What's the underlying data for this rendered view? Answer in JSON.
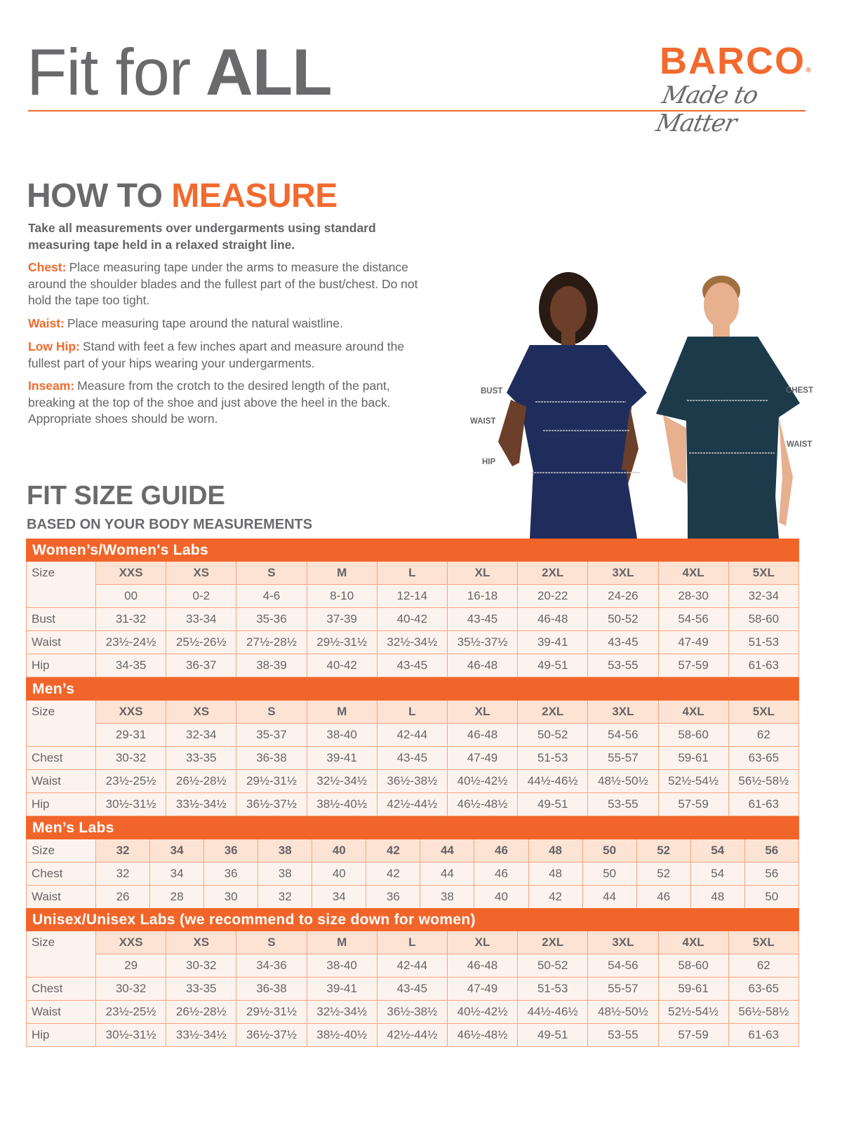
{
  "header": {
    "title_regular": "Fit for",
    "title_bold": "ALL"
  },
  "logo": {
    "brand": "BARCO",
    "registered": "®",
    "tagline": "Made to Matter"
  },
  "how_to": {
    "title_part1": "HOW TO",
    "title_part2": "MEASURE",
    "intro": "Take all measurements over undergarments using standard measuring tape held in a relaxed straight line.",
    "items": [
      {
        "label": "Chest:",
        "text": "Place measuring tape under the arms to measure the distance around the shoulder blades and the fullest part of the bust/chest. Do not hold the tape too tight."
      },
      {
        "label": "Waist:",
        "text": "Place measuring tape around the natural waistline."
      },
      {
        "label": "Low Hip:",
        "text": "Stand with feet a few inches apart and measure around the fullest part of your hips wearing your undergarments."
      },
      {
        "label": "Inseam:",
        "text": "Measure from the crotch to the desired length of the pant, breaking at the top of the shoe and just above the heel in the back. Appropriate shoes should be worn."
      }
    ]
  },
  "figures": {
    "women_labels": [
      "BUST",
      "WAIST",
      "HIP"
    ],
    "men_labels": [
      "CHEST",
      "WAIST"
    ],
    "women_scrub_color": "#1f2d5c",
    "men_scrub_color": "#1d3a4a"
  },
  "guide": {
    "title": "FIT SIZE GUIDE",
    "subtitle": "BASED ON YOUR BODY MEASUREMENTS"
  },
  "colors": {
    "accent": "#f26a2e",
    "size_row": "#fde3d3",
    "cell": "#fdf3ee",
    "text": "#646467"
  },
  "tables": [
    {
      "title": "Women’s/Women's Labs",
      "size_label": "Size",
      "sizes": [
        "XXS",
        "XS",
        "S",
        "M",
        "L",
        "XL",
        "2XL",
        "3XL",
        "4XL",
        "5XL"
      ],
      "size_numbers": [
        "00",
        "0-2",
        "4-6",
        "8-10",
        "12-14",
        "16-18",
        "20-22",
        "24-26",
        "28-30",
        "32-34"
      ],
      "rows": [
        {
          "label": "Bust",
          "values": [
            "31-32",
            "33-34",
            "35-36",
            "37-39",
            "40-42",
            "43-45",
            "46-48",
            "50-52",
            "54-56",
            "58-60"
          ]
        },
        {
          "label": "Waist",
          "values": [
            "23½-24½",
            "25½-26½",
            "27½-28½",
            "29½-31½",
            "32½-34½",
            "35½-37½",
            "39-41",
            "43-45",
            "47-49",
            "51-53"
          ]
        },
        {
          "label": "Hip",
          "values": [
            "34-35",
            "36-37",
            "38-39",
            "40-42",
            "43-45",
            "46-48",
            "49-51",
            "53-55",
            "57-59",
            "61-63"
          ]
        }
      ]
    },
    {
      "title": "Men’s",
      "size_label": "Size",
      "sizes": [
        "XXS",
        "XS",
        "S",
        "M",
        "L",
        "XL",
        "2XL",
        "3XL",
        "4XL",
        "5XL"
      ],
      "size_numbers": [
        "29-31",
        "32-34",
        "35-37",
        "38-40",
        "42-44",
        "46-48",
        "50-52",
        "54-56",
        "58-60",
        "62"
      ],
      "rows": [
        {
          "label": "Chest",
          "values": [
            "30-32",
            "33-35",
            "36-38",
            "39-41",
            "43-45",
            "47-49",
            "51-53",
            "55-57",
            "59-61",
            "63-65"
          ]
        },
        {
          "label": "Waist",
          "values": [
            "23½-25½",
            "26½-28½",
            "29½-31½",
            "32½-34½",
            "36½-38½",
            "40½-42½",
            "44½-46½",
            "48½-50½",
            "52½-54½",
            "56½-58½"
          ]
        },
        {
          "label": "Hip",
          "values": [
            "30½-31½",
            "33½-34½",
            "36½-37½",
            "38½-40½",
            "42½-44½",
            "46½-48½",
            "49-51",
            "53-55",
            "57-59",
            "61-63"
          ]
        }
      ]
    },
    {
      "title": "Men’s Labs",
      "size_label": "Size",
      "sizes": [
        "32",
        "34",
        "36",
        "38",
        "40",
        "42",
        "44",
        "46",
        "48",
        "50",
        "52",
        "54",
        "56"
      ],
      "rows": [
        {
          "label": "Chest",
          "values": [
            "32",
            "34",
            "36",
            "38",
            "40",
            "42",
            "44",
            "46",
            "48",
            "50",
            "52",
            "54",
            "56"
          ]
        },
        {
          "label": "Waist",
          "values": [
            "26",
            "28",
            "30",
            "32",
            "34",
            "36",
            "38",
            "40",
            "42",
            "44",
            "46",
            "48",
            "50"
          ]
        }
      ]
    },
    {
      "title": "Unisex/Unisex Labs (we recommend to size down for women)",
      "size_label": "Size",
      "sizes": [
        "XXS",
        "XS",
        "S",
        "M",
        "L",
        "XL",
        "2XL",
        "3XL",
        "4XL",
        "5XL"
      ],
      "size_numbers": [
        "29",
        "30-32",
        "34-36",
        "38-40",
        "42-44",
        "46-48",
        "50-52",
        "54-56",
        "58-60",
        "62"
      ],
      "rows": [
        {
          "label": "Chest",
          "values": [
            "30-32",
            "33-35",
            "36-38",
            "39-41",
            "43-45",
            "47-49",
            "51-53",
            "55-57",
            "59-61",
            "63-65"
          ]
        },
        {
          "label": "Waist",
          "values": [
            "23½-25½",
            "26½-28½",
            "29½-31½",
            "32½-34½",
            "36½-38½",
            "40½-42½",
            "44½-46½",
            "48½-50½",
            "52½-54½",
            "56½-58½"
          ]
        },
        {
          "label": "Hip",
          "values": [
            "30½-31½",
            "33½-34½",
            "36½-37½",
            "38½-40½",
            "42½-44½",
            "46½-48½",
            "49-51",
            "53-55",
            "57-59",
            "61-63"
          ]
        }
      ]
    }
  ]
}
